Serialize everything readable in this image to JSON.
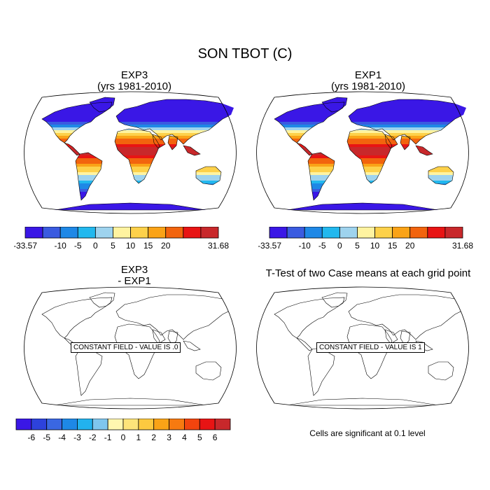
{
  "main_title": "SON TBOT (C)",
  "panels": {
    "top_left": {
      "title": "EXP3",
      "subtitle": "(yrs 1981-2010)",
      "filled": true
    },
    "top_right": {
      "title": "EXP1",
      "subtitle": "(yrs 1981-2010)",
      "filled": true
    },
    "bottom_left": {
      "title": "EXP3",
      "subtitle": "- EXP1",
      "constant_label": "CONSTANT FIELD - VALUE IS .0"
    },
    "bottom_right": {
      "title": "T-Test of two Case means at each grid point",
      "constant_label": "CONSTANT FIELD - VALUE IS 1"
    }
  },
  "colorbar_temp": {
    "colors": [
      "#3a17e6",
      "#3a5be0",
      "#1e88e6",
      "#22b8ee",
      "#9ed3ee",
      "#fff3a0",
      "#fdd14a",
      "#faa317",
      "#f2640e",
      "#e81414",
      "#c8282b"
    ],
    "labels": [
      "-33.57",
      "-10",
      "-5",
      "0",
      "5",
      "10",
      "15",
      "20",
      "31.68"
    ]
  },
  "colorbar_diff": {
    "colors": [
      "#3a17e6",
      "#2d42dc",
      "#3a67e2",
      "#1e88e6",
      "#22b2ee",
      "#7fc6ee",
      "#fff7b0",
      "#fde47a",
      "#fdc940",
      "#faa317",
      "#f77a10",
      "#f2440e",
      "#e81414",
      "#c8282b"
    ],
    "labels": [
      "-6",
      "-5",
      "-4",
      "-3",
      "-2",
      "-1",
      "0",
      "1",
      "2",
      "3",
      "4",
      "5",
      "6"
    ]
  },
  "significance_note": "Cells are significant at 0.1 level"
}
